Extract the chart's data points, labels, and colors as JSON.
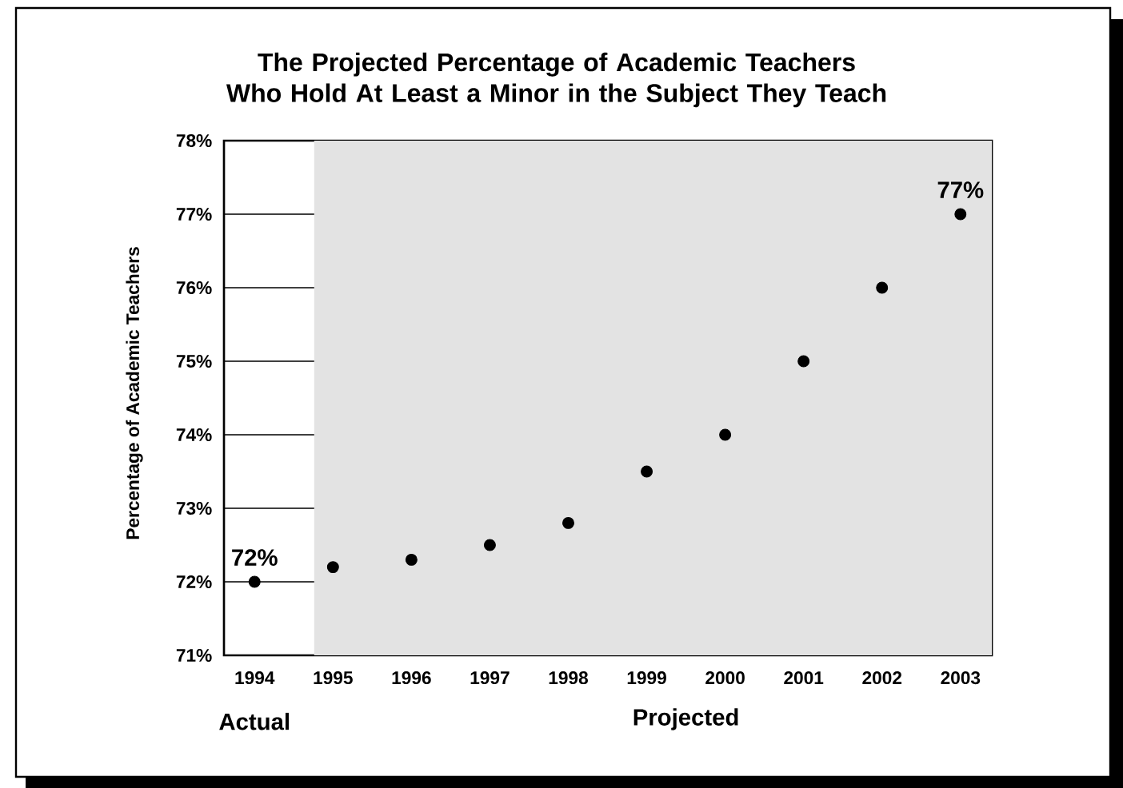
{
  "chart_data": {
    "type": "scatter",
    "title": "The Projected Percentage of Academic Teachers Who Hold At Least a Minor in the Subject They Teach",
    "ylabel": "Percentage of Academic Teachers",
    "categories": [
      "1994",
      "1995",
      "1996",
      "1997",
      "1998",
      "1999",
      "2000",
      "2001",
      "2002",
      "2003"
    ],
    "values": [
      72,
      72.2,
      72.3,
      72.5,
      72.8,
      73.5,
      74,
      75,
      76,
      77
    ],
    "value_labels": [
      "72%",
      null,
      null,
      null,
      null,
      null,
      null,
      null,
      null,
      "77%"
    ],
    "color": "#000000",
    "marker": "circle",
    "ylim": [
      71,
      78
    ],
    "yticks": [
      {
        "value": 71,
        "label": "71%"
      },
      {
        "value": 72,
        "label": "72%"
      },
      {
        "value": 73,
        "label": "73%"
      },
      {
        "value": 74,
        "label": "74%"
      },
      {
        "value": 75,
        "label": "75%"
      },
      {
        "value": 76,
        "label": "76%"
      },
      {
        "value": 77,
        "label": "77%"
      },
      {
        "value": 78,
        "label": "78%"
      }
    ],
    "grid": "y",
    "bands": [
      {
        "axis": "x",
        "from": "1995",
        "to": "2003",
        "label": "Projected",
        "color": "#e3e3e3"
      }
    ],
    "annotations": [
      "Actual"
    ]
  }
}
